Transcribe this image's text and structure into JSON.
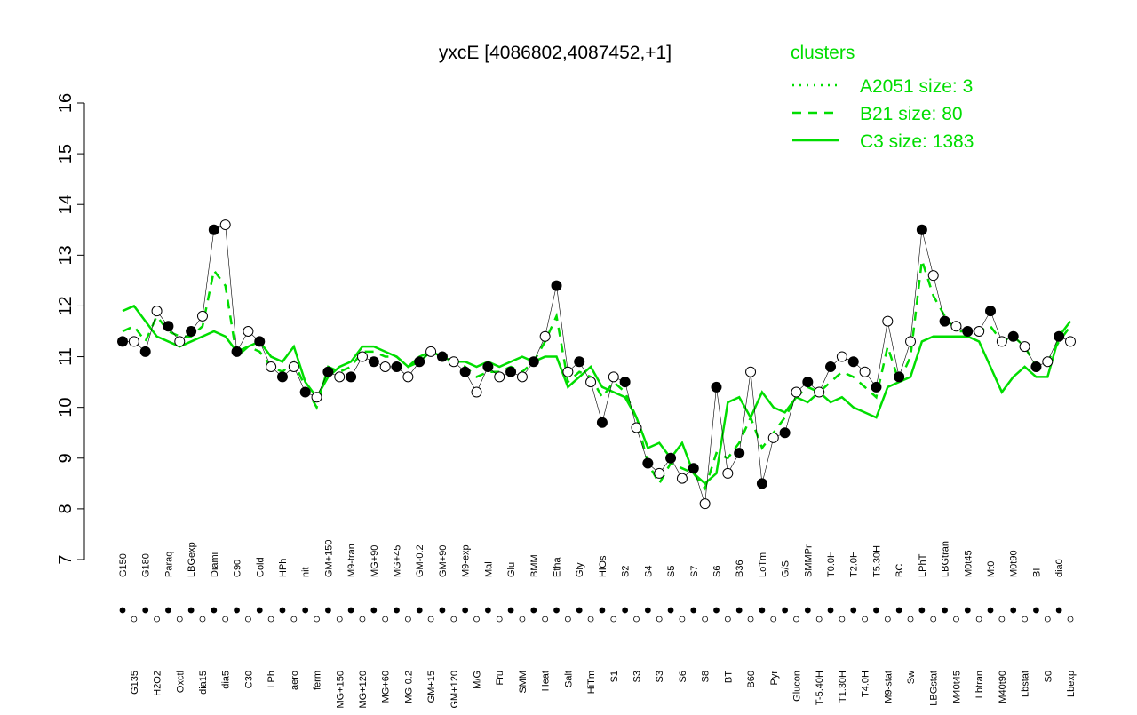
{
  "chart_data": {
    "type": "line",
    "title": "yxcE [4086802,4087452,+1]",
    "legend_title": "clusters",
    "legend_color": "#00dd00",
    "categories": [
      "G150",
      "G135",
      "G180",
      "H2O2",
      "Paraq",
      "Oxctl",
      "LBGexp",
      "dia15",
      "Diami",
      "dia5",
      "C90",
      "C30",
      "Cold",
      "LPh",
      "HPh",
      "aero",
      "nit",
      "ferm",
      "GM+150",
      "MG+150",
      "M9-tran",
      "MG+120",
      "MG+90",
      "MG+60",
      "MG+45",
      "MG-0.2",
      "GM-0.2",
      "GM+15",
      "GM+90",
      "GM+120",
      "M9-exp",
      "M/G",
      "Mal",
      "Fru",
      "Glu",
      "SMM",
      "BMM",
      "Heat",
      "Etha",
      "Salt",
      "Gly",
      "HiTm",
      "HiOs",
      "S1",
      "S2",
      "S3",
      "S4",
      "S3",
      "S5",
      "S6",
      "S7",
      "S8",
      "S6",
      "BT",
      "B36",
      "B60",
      "LoTm",
      "Pyr",
      "G/S",
      "Glucon",
      "SMMPr",
      "T-5.40H",
      "T0.0H",
      "T1.30H",
      "T2.0H",
      "T4.0H",
      "T5.30H",
      "M9-stat",
      "BC",
      "Sw",
      "LPhT",
      "LBGstat",
      "LBGtran",
      "M40t45",
      "M0t45",
      "Lbtran",
      "Mt0",
      "M40t90",
      "M0t90",
      "Lbstat",
      "BI",
      "S0",
      "dia0",
      "Lbexp"
    ],
    "points": [
      11.3,
      11.3,
      11.1,
      11.9,
      11.6,
      11.3,
      11.5,
      11.8,
      13.5,
      13.6,
      11.1,
      11.5,
      11.3,
      10.8,
      10.6,
      10.8,
      10.3,
      10.2,
      10.7,
      10.6,
      10.6,
      11.0,
      10.9,
      10.8,
      10.8,
      10.6,
      10.9,
      11.1,
      11.0,
      10.9,
      10.7,
      10.3,
      10.8,
      10.6,
      10.7,
      10.6,
      10.9,
      11.4,
      12.4,
      10.7,
      10.9,
      10.5,
      9.7,
      10.6,
      10.5,
      9.6,
      8.9,
      8.7,
      9.0,
      8.6,
      8.8,
      8.1,
      10.4,
      8.7,
      9.1,
      10.7,
      8.5,
      9.4,
      9.5,
      10.3,
      10.5,
      10.3,
      10.8,
      11.0,
      10.9,
      10.7,
      10.4,
      11.7,
      10.6,
      11.3,
      13.5,
      12.6,
      11.7,
      11.6,
      11.5,
      11.5,
      11.9,
      11.3,
      11.4,
      11.2,
      10.8,
      10.9,
      11.4,
      11.3
    ],
    "point_fills": [
      "#000000",
      "#ffffff"
    ],
    "series": [
      {
        "name": "A2051 size: 3",
        "color": "#00dd00",
        "dash": "2,6"
      },
      {
        "name": "B21 size: 80",
        "color": "#00dd00",
        "dash": "10,8",
        "values": [
          11.5,
          11.6,
          11.3,
          11.8,
          11.5,
          11.4,
          11.4,
          11.6,
          12.7,
          12.4,
          11.0,
          11.2,
          11.1,
          10.8,
          10.7,
          10.9,
          10.4,
          10.0,
          10.8,
          10.7,
          10.8,
          11.1,
          11.1,
          11.0,
          11.0,
          10.8,
          10.9,
          11.1,
          11.0,
          10.9,
          10.8,
          10.6,
          10.7,
          10.7,
          10.8,
          10.7,
          10.9,
          11.3,
          11.8,
          10.5,
          10.7,
          10.6,
          10.2,
          10.5,
          10.3,
          9.8,
          8.9,
          8.5,
          8.9,
          8.8,
          8.7,
          8.4,
          9.1,
          9.0,
          9.3,
          9.8,
          9.2,
          9.5,
          9.8,
          10.2,
          10.4,
          10.3,
          10.5,
          10.7,
          10.6,
          10.4,
          10.2,
          11.2,
          10.5,
          11.0,
          12.9,
          12.2,
          11.8,
          11.5,
          11.5,
          11.5,
          11.6,
          11.3,
          11.4,
          11.2,
          10.8,
          10.9,
          11.3,
          11.6
        ]
      },
      {
        "name": "C3 size: 1383",
        "color": "#00dd00",
        "dash": "none",
        "values": [
          11.9,
          12.0,
          11.7,
          11.4,
          11.3,
          11.2,
          11.3,
          11.4,
          11.5,
          11.4,
          11.1,
          11.2,
          11.3,
          11.0,
          10.9,
          11.2,
          10.5,
          10.2,
          10.6,
          10.8,
          10.9,
          11.2,
          11.2,
          11.1,
          11.0,
          10.8,
          11.0,
          11.1,
          11.0,
          10.9,
          10.9,
          10.8,
          10.9,
          10.8,
          10.9,
          11.0,
          10.9,
          11.0,
          11.0,
          10.4,
          10.6,
          10.8,
          10.4,
          10.3,
          10.2,
          9.8,
          9.2,
          9.3,
          9.0,
          9.3,
          8.7,
          8.5,
          8.7,
          10.1,
          10.2,
          9.8,
          10.3,
          10.0,
          9.9,
          10.2,
          10.1,
          10.3,
          10.1,
          10.2,
          10.0,
          9.9,
          9.8,
          10.4,
          10.5,
          10.6,
          11.3,
          11.4,
          11.4,
          11.4,
          11.4,
          11.3,
          10.8,
          10.3,
          10.6,
          10.8,
          10.6,
          10.6,
          11.4,
          11.7
        ]
      }
    ],
    "ylim": [
      7,
      16
    ],
    "yticks": [
      7,
      8,
      9,
      10,
      11,
      12,
      13,
      14,
      15,
      16
    ]
  }
}
